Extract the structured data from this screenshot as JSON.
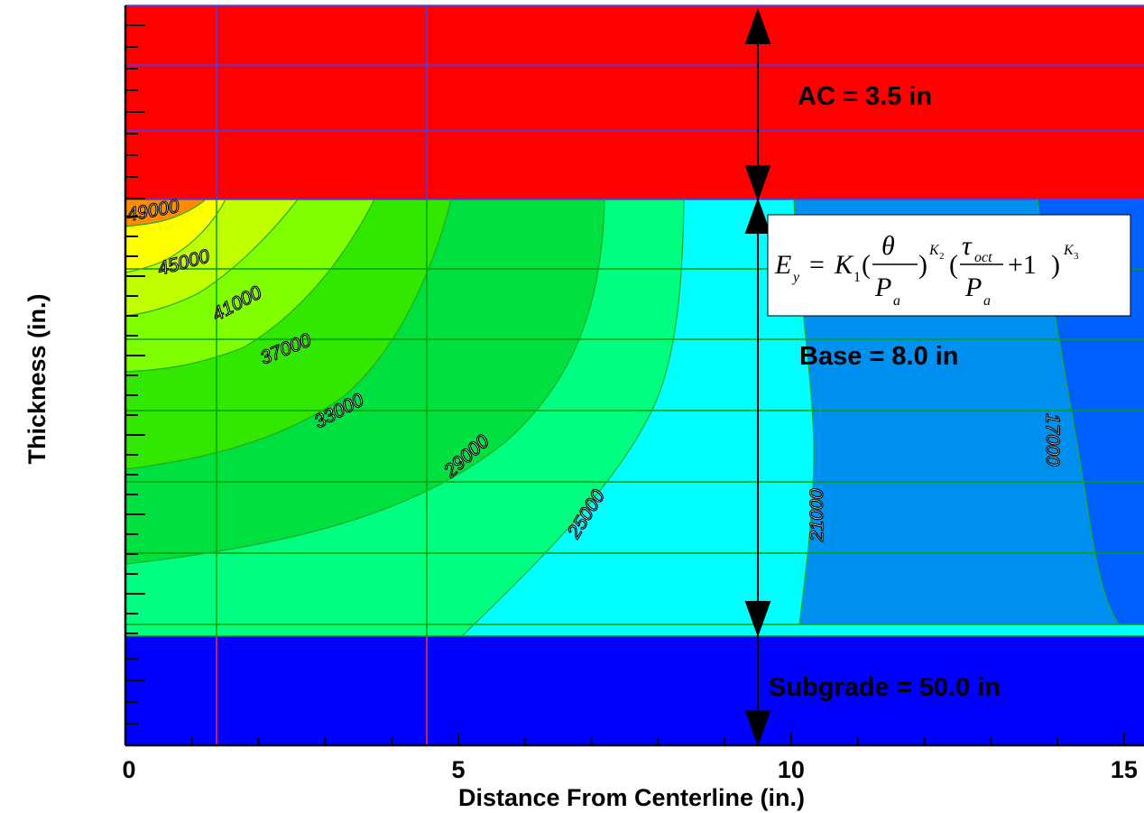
{
  "chart_data": {
    "type": "heatmap",
    "title": "",
    "xlabel": "Distance From Centerline (in.)",
    "ylabel": "Thickness (in.)",
    "xlim": [
      0,
      15.3
    ],
    "x_ticks": [
      {
        "value": 0,
        "label": "0"
      },
      {
        "value": 5,
        "label": "5"
      },
      {
        "value": 10,
        "label": "10"
      },
      {
        "value": 15,
        "label": "15"
      }
    ],
    "layers": [
      {
        "name": "AC",
        "label": "AC = 3.5 in",
        "thickness_in": 3.5,
        "color": "#ff0000"
      },
      {
        "name": "Base",
        "label": "Base = 8.0 in",
        "thickness_in": 8.0,
        "color": "#00ffff"
      },
      {
        "name": "Subgrade",
        "label": "Subgrade = 50.0 in",
        "thickness_in": 50.0,
        "color": "#0000ff"
      }
    ],
    "contour_levels": [
      {
        "value": 49000,
        "label": "49000",
        "color": "#ff8c00"
      },
      {
        "value": 45000,
        "label": "45000",
        "color": "#ffff00"
      },
      {
        "value": 41000,
        "label": "41000",
        "color": "#bfff00"
      },
      {
        "value": 37000,
        "label": "37000",
        "color": "#80ff00"
      },
      {
        "value": 33000,
        "label": "33000",
        "color": "#33e800"
      },
      {
        "value": 29000,
        "label": "29000",
        "color": "#00e040"
      },
      {
        "value": 25000,
        "label": "25000",
        "color": "#00ff80"
      },
      {
        "value": 21000,
        "label": "21000",
        "color": "#00ffff"
      },
      {
        "value": 17000,
        "label": "17000",
        "color": "#0090f0"
      }
    ],
    "beyond_last_level_color": "#0060ff",
    "equation": {
      "lhs": "E",
      "lhs_sub": "y",
      "k1": "K",
      "k1_sub": "1",
      "theta": "θ",
      "Pa": "P",
      "Pa_sub": "a",
      "k2": "K",
      "k2_sub": "2",
      "tau": "τ",
      "tau_sub": "oct",
      "plus_one": "+1",
      "k3": "K",
      "k3_sub": "3"
    },
    "grid": true
  }
}
